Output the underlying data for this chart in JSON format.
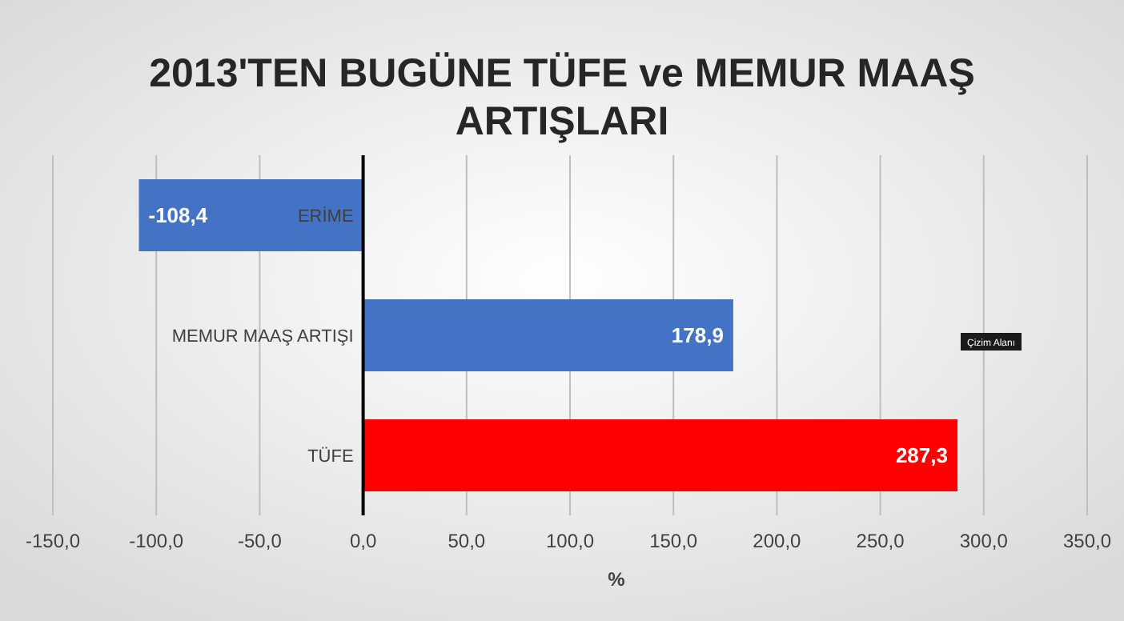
{
  "chart_data": {
    "type": "bar",
    "orientation": "horizontal",
    "title": "2013'TEN BUGÜNE TÜFE ve MEMUR MAAŞ ARTIŞLARI",
    "xlabel": "%",
    "categories": [
      "ERİME",
      "MEMUR MAAŞ ARTIŞI",
      "TÜFE"
    ],
    "values": [
      -108.4,
      178.9,
      287.3
    ],
    "colors": [
      "#4472c4",
      "#4472c4",
      "#ff0000"
    ],
    "value_labels": [
      "-108,4",
      "178,9",
      "287,3"
    ],
    "xlim": [
      -150,
      350
    ],
    "xticks": [
      {
        "value": -150,
        "label": "-150,0"
      },
      {
        "value": -100,
        "label": "-100,0"
      },
      {
        "value": -50,
        "label": "-50,0"
      },
      {
        "value": 0,
        "label": "0,0"
      },
      {
        "value": 50,
        "label": "50,0"
      },
      {
        "value": 100,
        "label": "100,0"
      },
      {
        "value": 150,
        "label": "150,0"
      },
      {
        "value": 200,
        "label": "200,0"
      },
      {
        "value": 250,
        "label": "250,0"
      },
      {
        "value": 300,
        "label": "300,0"
      },
      {
        "value": 350,
        "label": "350,0"
      }
    ],
    "grid": "x",
    "annotations": [
      "Çizim Alanı"
    ]
  }
}
